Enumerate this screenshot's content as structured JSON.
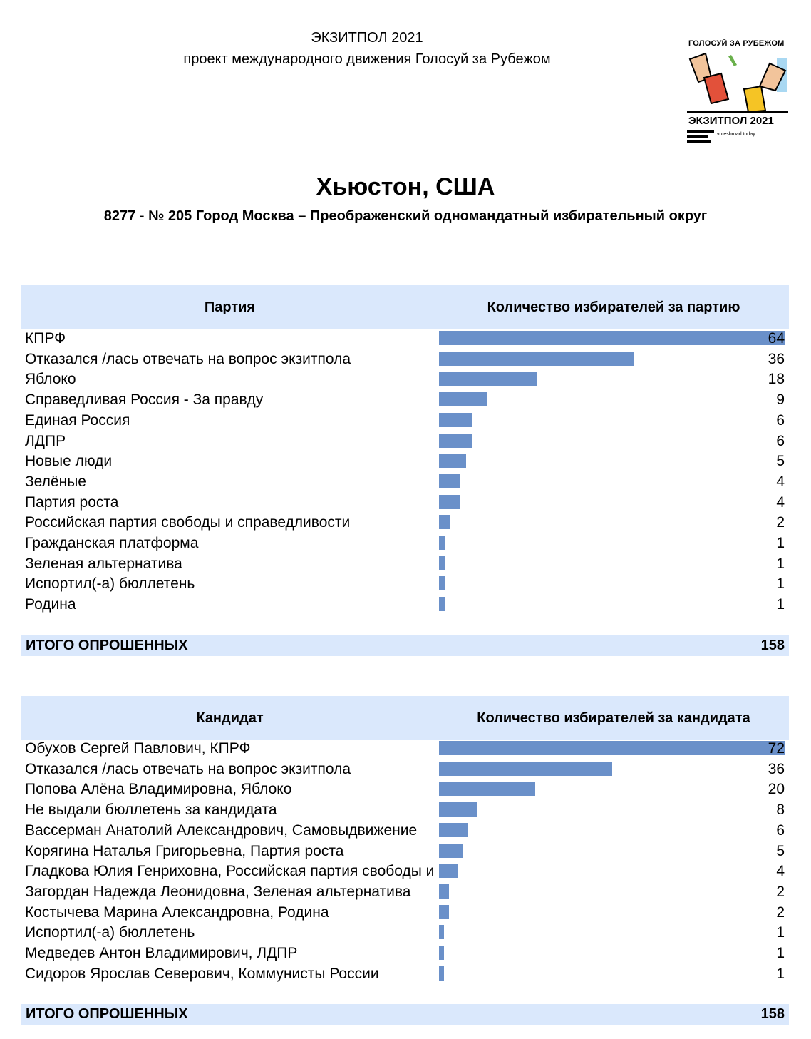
{
  "header": {
    "line1": "ЭКЗИТПОЛ 2021",
    "line2": "проект международного движения Голосуй за Рубежом"
  },
  "logo": {
    "top_text": "ГОЛОСУЙ ЗА РУБЕЖОМ",
    "big_text": "ЭКЗИТПОЛ 2021",
    "url": "votesbroad.today"
  },
  "title": "Хьюстон, США",
  "subtitle": "8277 - № 205 Город Москва – Преображенский одномандатный избирательный округ",
  "colors": {
    "header_bg": "#dae8fc",
    "bar": "#6a90c9"
  },
  "party_table": {
    "col_left": "Партия",
    "col_right": "Количество избирателей за партию",
    "total_label": "ИТОГО ОПРОШЕННЫХ",
    "total_value": "158"
  },
  "candidate_table": {
    "col_left": "Кандидат",
    "col_right": "Количество избирателей за кандидата",
    "total_label": "ИТОГО ОПРОШЕННЫХ",
    "total_value": "158"
  },
  "chart_data": [
    {
      "type": "bar",
      "title": "",
      "categories": [
        "КПРФ",
        "Отказался /лась отвечать на вопрос экзитпола",
        "Яблоко",
        "Справедливая Россия - За правду",
        "Единая Россия",
        "ЛДПР",
        "Новые люди",
        "Зелёные",
        "Партия роста",
        "Российская партия свободы и справедливости",
        "Гражданская платформа",
        "Зеленая альтернатива",
        "Испортил(-а) бюллетень",
        "Родина"
      ],
      "values": [
        64,
        36,
        18,
        9,
        6,
        6,
        5,
        4,
        4,
        2,
        1,
        1,
        1,
        1
      ],
      "xlim": [
        0,
        64
      ]
    },
    {
      "type": "bar",
      "title": "",
      "categories": [
        "Обухов Сергей Павлович, КПРФ",
        "Отказался /лась отвечать на вопрос экзитпола",
        "Попова Алёна Владимировна, Яблоко",
        "Не выдали бюллетень за кандидата",
        "Вассерман Анатолий Александрович, Самовыдвижение",
        "Корягина Наталья Григорьевна, Партия роста",
        "Гладкова Юлия Генриховна, Российская партия свободы и справедливости",
        "Загордан Надежда Леонидовна, Зеленая альтернатива",
        "Костычева Марина Александровна, Родина",
        "Испортил(-а) бюллетень",
        "Медведев Антон Владимирович, ЛДПР",
        "Сидоров Ярослав Северович, Коммунисты России"
      ],
      "values": [
        72,
        36,
        20,
        8,
        6,
        5,
        4,
        2,
        2,
        1,
        1,
        1
      ],
      "xlim": [
        0,
        72
      ]
    }
  ]
}
